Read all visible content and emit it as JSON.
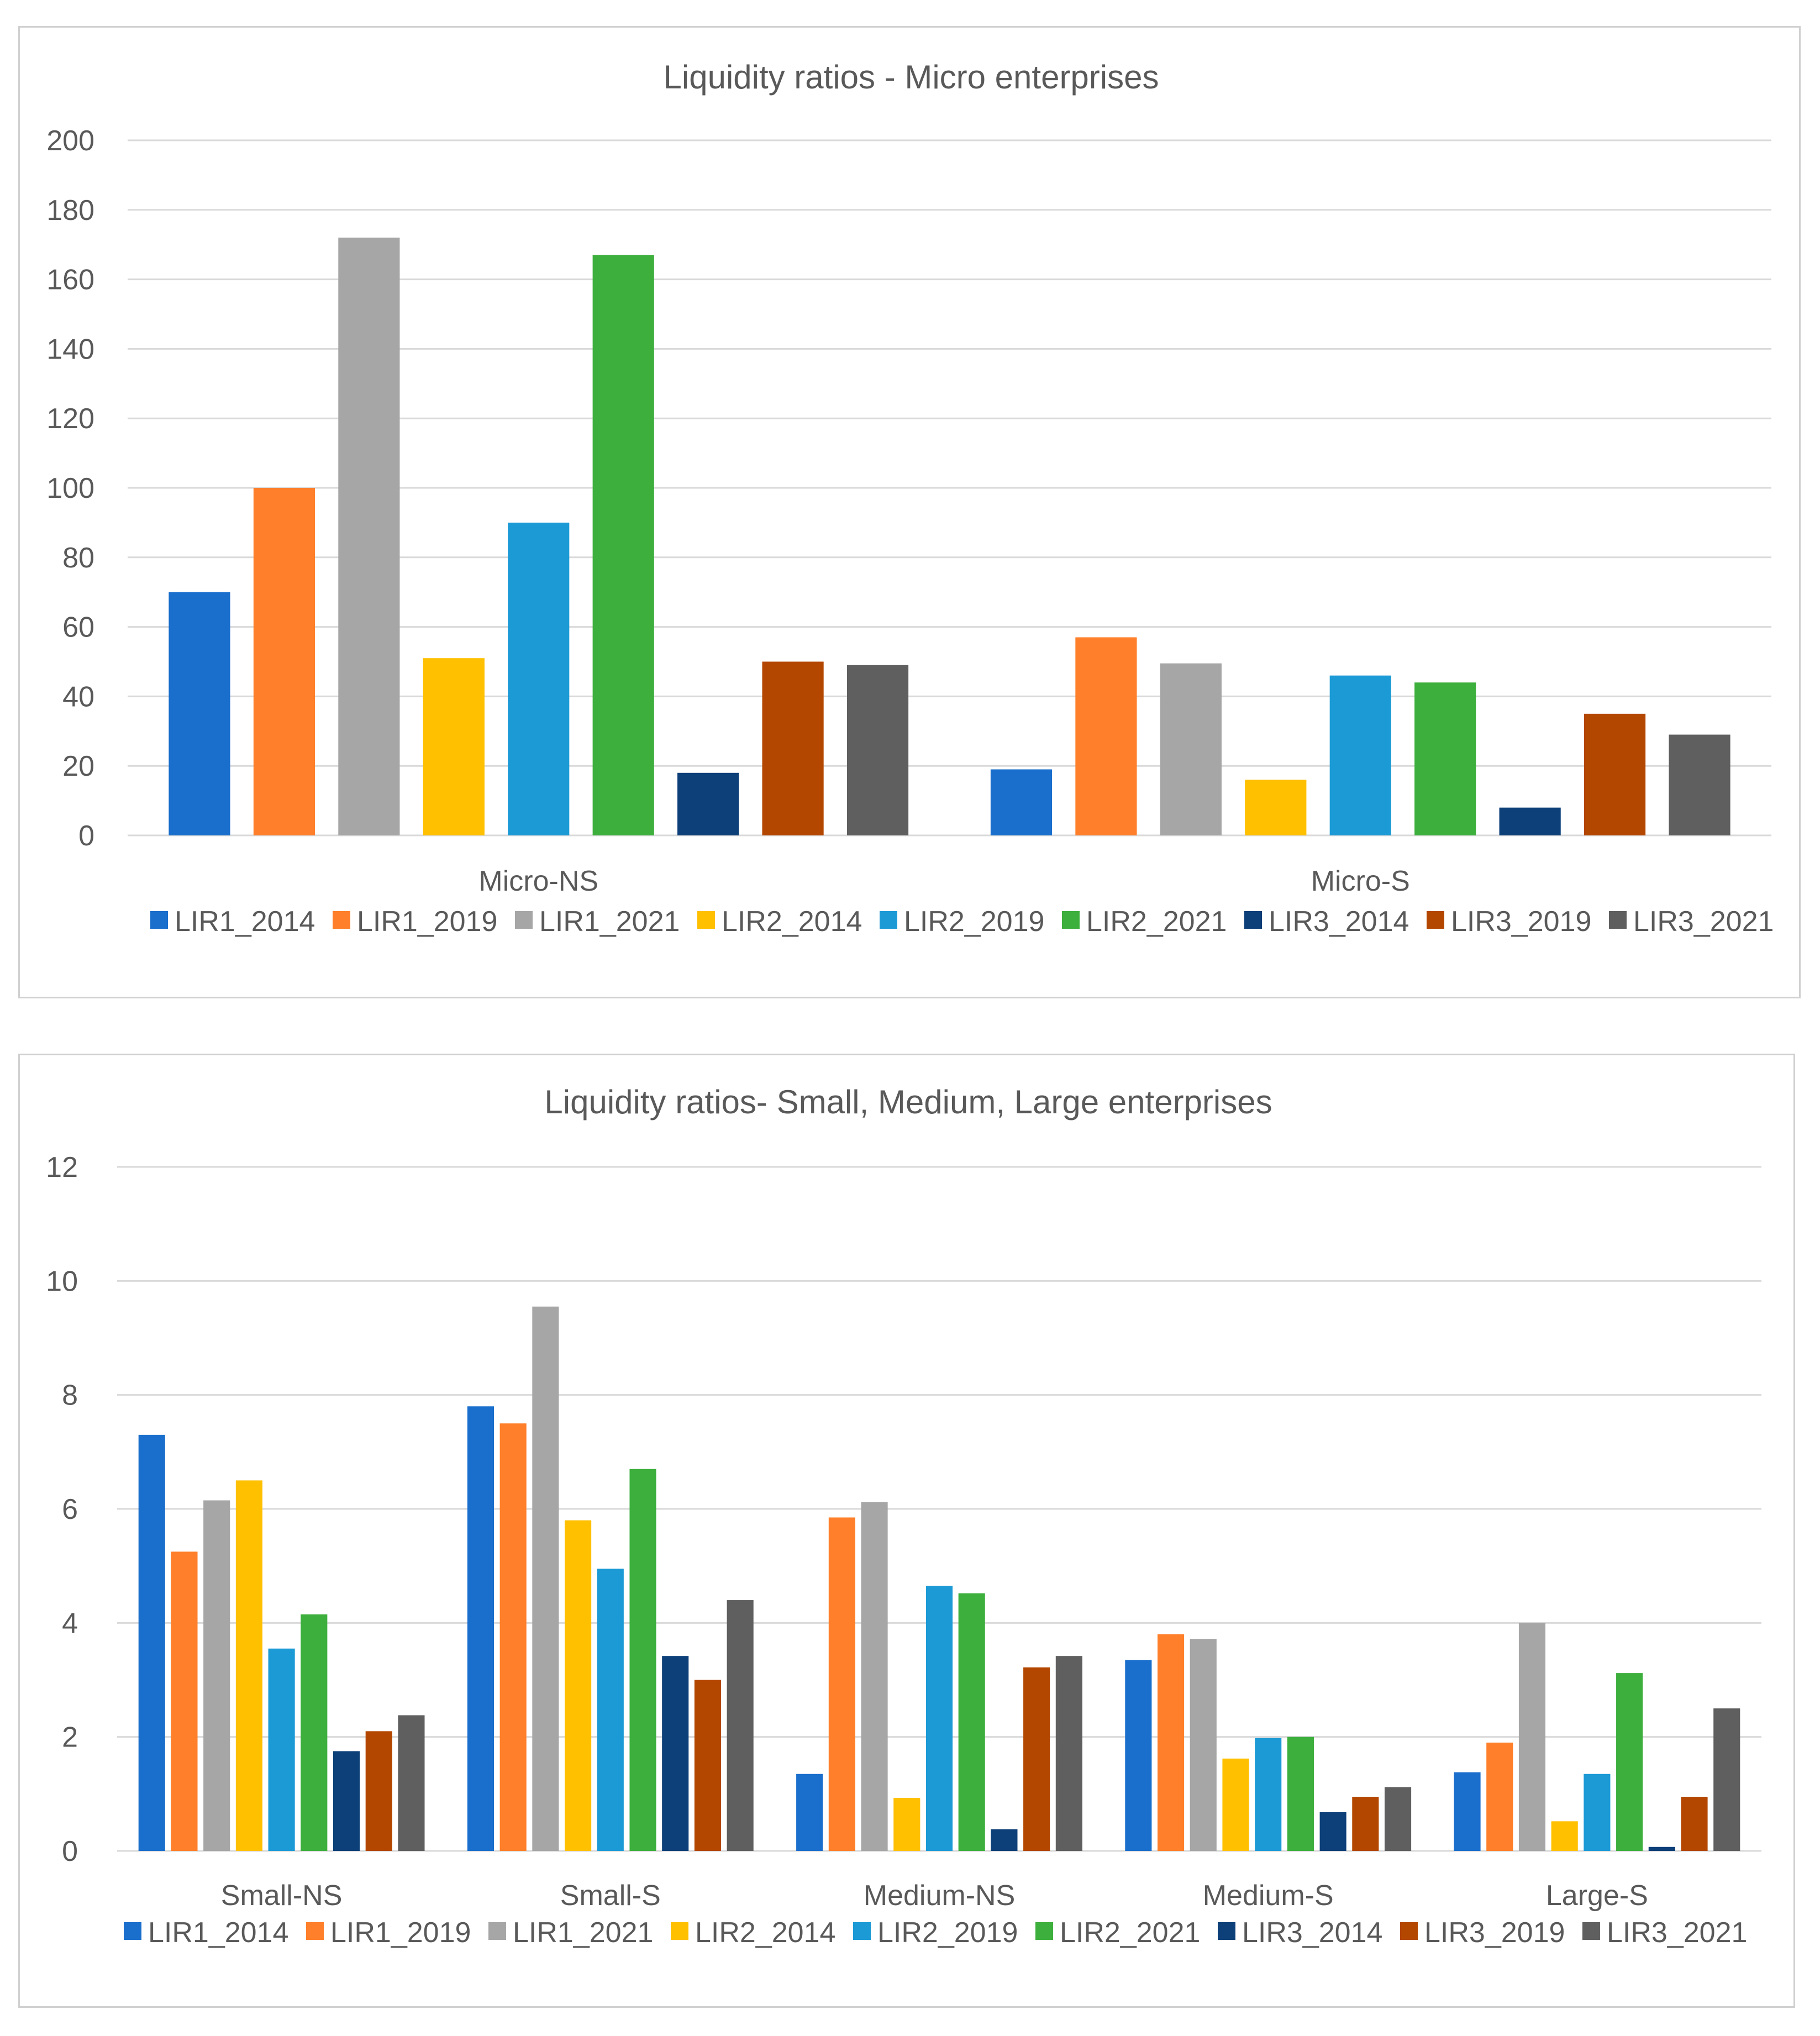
{
  "series_names": [
    "LIR1_2014",
    "LIR1_2019",
    "LIR1_2021",
    "LIR2_2014",
    "LIR2_2019",
    "LIR2_2021",
    "LIR3_2014",
    "LIR3_2019",
    "LIR3_2021"
  ],
  "series_colors": [
    "#1a6ecc",
    "#ff7f2a",
    "#a6a6a6",
    "#ffc000",
    "#1b9ad6",
    "#3daf3d",
    "#0d3f78",
    "#b34700",
    "#5f5f5f"
  ],
  "chart_data": [
    {
      "type": "bar",
      "title": "Liquidity ratios - Micro enterprises",
      "categories": [
        "Micro-NS",
        "Micro-S"
      ],
      "ylim": [
        0,
        200
      ],
      "yticks": [
        0,
        20,
        40,
        60,
        80,
        100,
        120,
        140,
        160,
        180,
        200
      ],
      "xlabel": "",
      "ylabel": "",
      "grid": true,
      "legend": "bottom",
      "series": [
        {
          "name": "LIR1_2014",
          "values": [
            70,
            19
          ]
        },
        {
          "name": "LIR1_2019",
          "values": [
            100,
            57
          ]
        },
        {
          "name": "LIR1_2021",
          "values": [
            172,
            49.5
          ]
        },
        {
          "name": "LIR2_2014",
          "values": [
            51,
            16
          ]
        },
        {
          "name": "LIR2_2019",
          "values": [
            90,
            46
          ]
        },
        {
          "name": "LIR2_2021",
          "values": [
            167,
            44
          ]
        },
        {
          "name": "LIR3_2014",
          "values": [
            18,
            8
          ]
        },
        {
          "name": "LIR3_2019",
          "values": [
            50,
            35
          ]
        },
        {
          "name": "LIR3_2021",
          "values": [
            49,
            29
          ]
        }
      ]
    },
    {
      "type": "bar",
      "title": "Liquidity ratios- Small, Medium, Large enterprises",
      "categories": [
        "Small-NS",
        "Small-S",
        "Medium-NS",
        "Medium-S",
        "Large-S"
      ],
      "ylim": [
        0,
        12
      ],
      "yticks": [
        0,
        2,
        4,
        6,
        8,
        10,
        12
      ],
      "xlabel": "",
      "ylabel": "",
      "grid": true,
      "legend": "bottom",
      "series": [
        {
          "name": "LIR1_2014",
          "values": [
            7.3,
            7.8,
            1.35,
            3.35,
            1.38
          ]
        },
        {
          "name": "LIR1_2019",
          "values": [
            5.25,
            7.5,
            5.85,
            3.8,
            1.9
          ]
        },
        {
          "name": "LIR1_2021",
          "values": [
            6.15,
            9.55,
            6.12,
            3.72,
            4.0
          ]
        },
        {
          "name": "LIR2_2014",
          "values": [
            6.5,
            5.8,
            0.93,
            1.62,
            0.52
          ]
        },
        {
          "name": "LIR2_2019",
          "values": [
            3.55,
            4.95,
            4.65,
            1.98,
            1.35
          ]
        },
        {
          "name": "LIR2_2021",
          "values": [
            4.15,
            6.7,
            4.52,
            2.0,
            3.12
          ]
        },
        {
          "name": "LIR3_2014",
          "values": [
            1.75,
            3.42,
            0.38,
            0.68,
            0.07
          ]
        },
        {
          "name": "LIR3_2019",
          "values": [
            2.1,
            3.0,
            3.22,
            0.95,
            0.95
          ]
        },
        {
          "name": "LIR3_2021",
          "values": [
            2.38,
            4.4,
            3.42,
            1.12,
            2.5
          ]
        }
      ]
    }
  ]
}
